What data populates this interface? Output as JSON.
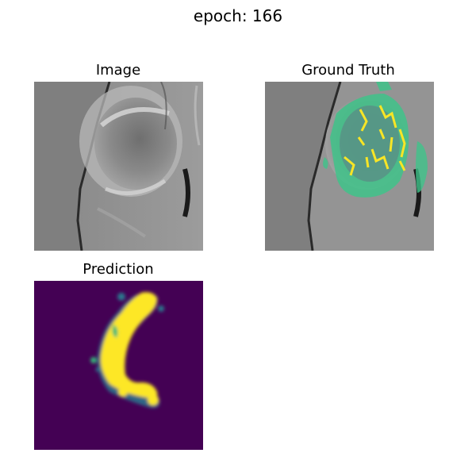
{
  "figure": {
    "suptitle": "epoch: 166"
  },
  "panels": [
    {
      "title": "Image"
    },
    {
      "title": "Ground Truth"
    },
    {
      "title": "Prediction"
    }
  ],
  "colors": {
    "background_gray": "#7f7f7f",
    "overlay_green": "#3fc38a",
    "overlay_yellow": "#f7e526",
    "viridis_low": "#440154",
    "viridis_mid": "#2a788e",
    "viridis_high": "#fde725"
  }
}
